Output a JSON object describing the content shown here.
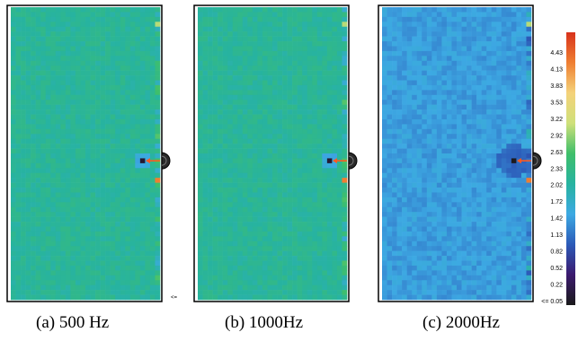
{
  "chart_data": {
    "type": "heatmap",
    "panels": [
      {
        "caption": "(a) 500 Hz",
        "frequency_hz": 500,
        "background_value": 2.15,
        "source_core_value": 0.2,
        "halo_value": 1.6,
        "halo_extent": "small"
      },
      {
        "caption": "(b) 1000Hz",
        "frequency_hz": 1000,
        "background_value": 2.15,
        "source_core_value": 0.2,
        "halo_value": 1.6,
        "halo_extent": "small"
      },
      {
        "caption": "(c) 2000Hz",
        "frequency_hz": 2000,
        "background_value": 1.5,
        "source_core_value": 0.08,
        "halo_value": 1.15,
        "halo_extent": "large"
      }
    ],
    "colorbar": {
      "ticks": [
        "4.43",
        "4.13",
        "3.83",
        "3.53",
        "3.22",
        "2.92",
        "2.63",
        "2.33",
        "2.02",
        "1.72",
        "1.42",
        "1.13",
        "0.82",
        "0.52",
        "0.22",
        "<= 0.05"
      ],
      "range": [
        0.05,
        4.6
      ],
      "colormap_stops": [
        "#1a1a1a",
        "#3b1a6e",
        "#2c5ab8",
        "#3da9e3",
        "#27b3a0",
        "#3fbf6a",
        "#cfe07a",
        "#f4d27a",
        "#ef7f32",
        "#d8321b"
      ]
    },
    "small_label": "<="
  }
}
